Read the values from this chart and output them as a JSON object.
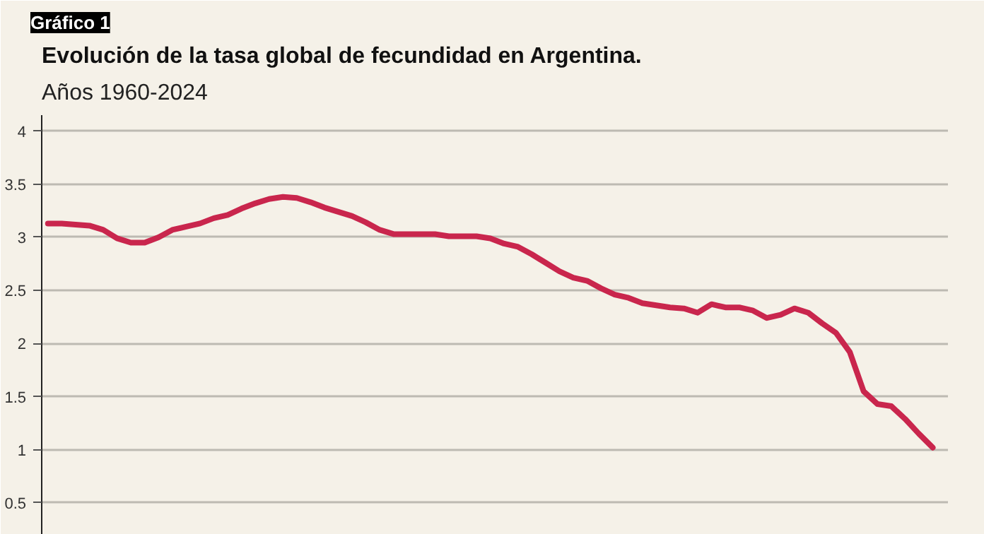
{
  "chart_data": {
    "type": "line",
    "title": "Evolución de la tasa global de fecundidad en Argentina.",
    "subtitle": "Años 1960-2024",
    "annotations": [
      "Gráfico 1"
    ],
    "categories": [
      null,
      null,
      null,
      null,
      null,
      null,
      null,
      null,
      null,
      null,
      null,
      null,
      null,
      null,
      null,
      null,
      null,
      null,
      null,
      null,
      null,
      null,
      null,
      null,
      null,
      null,
      null,
      null,
      null,
      null,
      null,
      null,
      null,
      null,
      null,
      null,
      null,
      null,
      null,
      null,
      null,
      null,
      null,
      null,
      null,
      null,
      null,
      null,
      null,
      null,
      null,
      null,
      null,
      null,
      null,
      null,
      null,
      null,
      null,
      null,
      null,
      null,
      null,
      null,
      null
    ],
    "values": [
      3.13,
      3.13,
      3.12,
      3.11,
      3.07,
      2.99,
      2.95,
      2.95,
      3.0,
      3.07,
      3.1,
      3.13,
      3.18,
      3.21,
      3.27,
      3.32,
      3.36,
      3.38,
      3.37,
      3.33,
      3.28,
      3.24,
      3.2,
      3.14,
      3.07,
      3.03,
      3.03,
      3.03,
      3.03,
      3.01,
      3.01,
      3.01,
      2.99,
      2.94,
      2.91,
      2.84,
      2.76,
      2.68,
      2.62,
      2.59,
      2.52,
      2.46,
      2.43,
      2.38,
      2.36,
      2.34,
      2.33,
      2.29,
      2.37,
      2.34,
      2.34,
      2.31,
      2.24,
      2.27,
      2.33,
      2.29,
      2.19,
      2.1,
      1.92,
      1.55,
      1.43,
      1.41,
      1.29,
      1.15,
      1.02
    ],
    "color": "#c9264d",
    "ylim": [
      0.2,
      4.15
    ],
    "yticks": [
      {
        "value": 0.5,
        "label": "0.5"
      },
      1,
      1.5,
      2,
      2.5,
      3,
      3.5,
      4
    ],
    "grid": "y",
    "line_style": "solid"
  }
}
